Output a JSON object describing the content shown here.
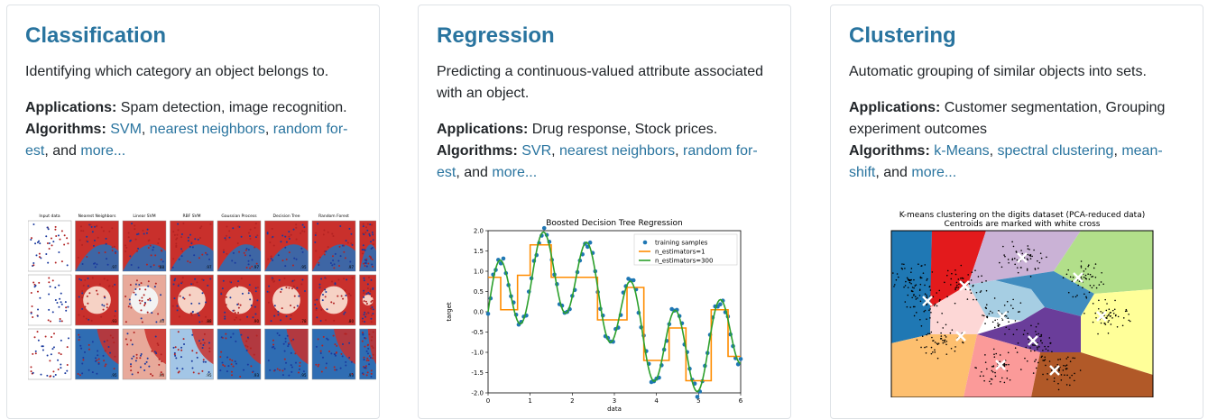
{
  "cards": [
    {
      "title": "Classification",
      "description": "Identifying which category an object belongs to.",
      "applications_label": "Applications:",
      "applications": "Spam detection, image recognition.",
      "algorithms_label": "Algorithms:",
      "links": [
        "SVM",
        "nearest neighbors",
        "random for-est"
      ],
      "link_1": "SVM",
      "link_2": "nearest neighbors",
      "link_3a": "random for-",
      "link_3b": "est",
      "and": ", and",
      "more": "more...",
      "figure": {
        "panel_titles": [
          "Input data",
          "Nearest Neighbors",
          "Linear SVM",
          "RBF SVM",
          "Gaussian Process",
          "Decision Tree",
          "Random Forest",
          "N"
        ],
        "scores_row1": [
          "",
          ".97",
          ".88",
          ".97",
          ".97",
          ".95",
          ".97"
        ],
        "scores_row2": [
          "",
          ".93",
          ".40",
          ".88",
          ".90",
          ".78",
          ".80"
        ],
        "scores_row3": [
          "",
          ".95",
          ".93",
          ".95",
          ".93",
          ".95",
          ".93"
        ]
      }
    },
    {
      "title": "Regression",
      "description_1": "Predicting a continuous-valued attribute associated",
      "description_2": "with an object.",
      "applications_label": "Applications:",
      "applications": "Drug response, Stock prices.",
      "algorithms_label": "Algorithms:",
      "link_1": "SVR",
      "link_2": "nearest neighbors",
      "link_3a": "random for-",
      "link_3b": "est",
      "and": ", and",
      "more": "more...",
      "figure": {
        "chart_data": {
          "type": "line",
          "title": "Boosted Decision Tree Regression",
          "xlabel": "data",
          "ylabel": "target",
          "xlim": [
            0,
            6
          ],
          "ylim": [
            -2.0,
            2.0
          ],
          "xticks": [
            "0",
            "1",
            "2",
            "3",
            "4",
            "5",
            "6"
          ],
          "yticks": [
            "2.0",
            "1.5",
            "1.0",
            "0.5",
            "0.0",
            "-0.5",
            "-1.0",
            "-1.5",
            "-2.0"
          ],
          "series": [
            {
              "name": "training samples",
              "kind": "scatter"
            },
            {
              "name": "n_estimators=1",
              "kind": "line"
            },
            {
              "name": "n_estimators=300",
              "kind": "line"
            }
          ],
          "legend": "top-right"
        }
      }
    },
    {
      "title": "Clustering",
      "description": "Automatic grouping of similar objects into sets.",
      "applications_label": "Applications:",
      "applications_1": "Customer segmentation, Grouping",
      "applications_2": "experiment outcomes",
      "algorithms_label": "Algorithms:",
      "link_1": "k-Means",
      "link_2": "spectral clustering",
      "link_3a": "mean-",
      "link_3b": "shift",
      "and": ", and",
      "more": "more...",
      "figure": {
        "title_1": "K-means clustering on the digits dataset (PCA-reduced data)",
        "title_2": "Centroids are marked with white cross"
      }
    }
  ],
  "colors": {
    "link": "#29749f",
    "text": "#212529",
    "border": "#dee2e6"
  }
}
